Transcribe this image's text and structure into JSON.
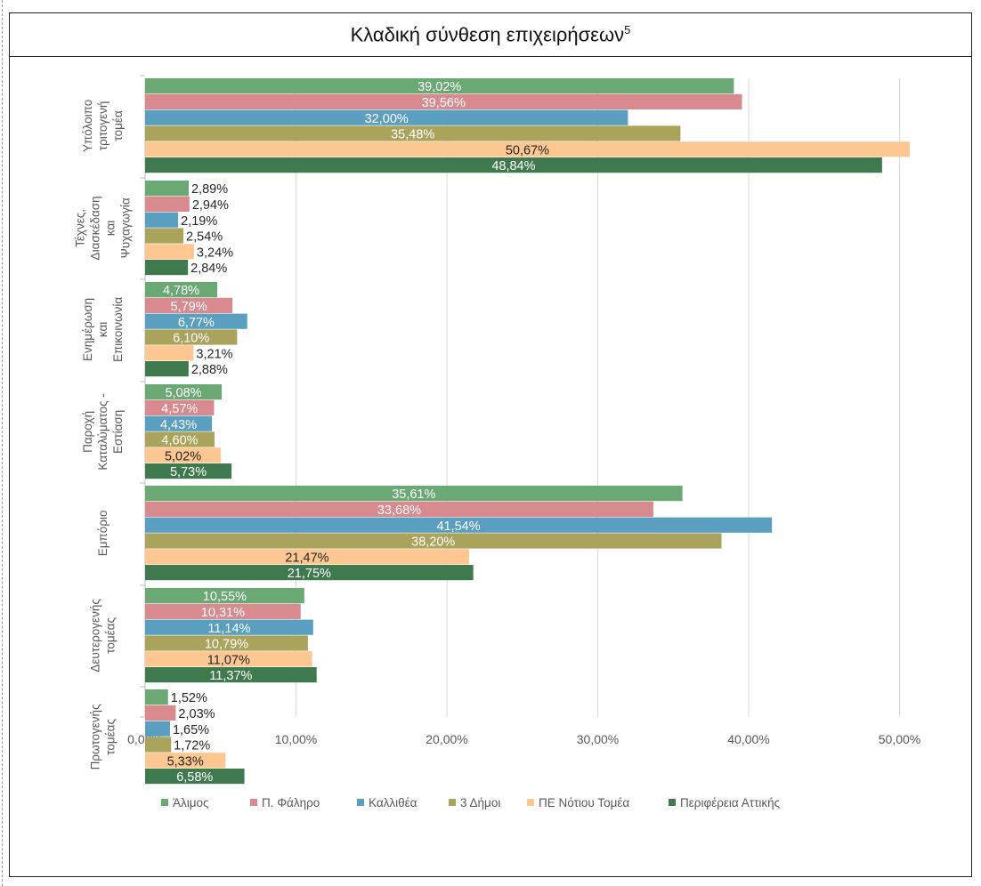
{
  "header": {
    "title": "Κλαδική σύνθεση επιχειρήσεων",
    "footnote": "5"
  },
  "chart_data": {
    "type": "bar",
    "orientation": "horizontal",
    "categories": [
      "Υπόλοιπο τριτογενή τομέα",
      "Τέχνες, Διασκέδαση και Ψυχαγωγία",
      "Ενημέρωση και Επικοινωνία",
      "Παροχή Καταλύματος - Εστίαση",
      "Εμπόριο",
      "Δευτερογενής τομέας",
      "Πρωτογενής τομέας"
    ],
    "category_lines": [
      [
        "Υπόλοιπο",
        "τριτογενή",
        "τομέα"
      ],
      [
        "Τέχνες,",
        "Διασκέδαση",
        "και",
        "Ψυχαγωγία"
      ],
      [
        "Ενημέρωση",
        "και",
        "Επικοινωνία"
      ],
      [
        "Παροχή",
        "Καταλύματος -",
        "Εστίαση"
      ],
      [
        "Εμπόριο"
      ],
      [
        "Δευτερογενής",
        "τομέας"
      ],
      [
        "Πρωτογενής",
        "τομέας"
      ]
    ],
    "series": [
      {
        "name": "Άλιμος",
        "color": "#6aa874",
        "values": [
          39.02,
          2.89,
          4.78,
          5.08,
          35.61,
          10.55,
          1.52
        ],
        "labels": [
          "39,02%",
          "2,89%",
          "4,78%",
          "5,08%",
          "35,61%",
          "10,55%",
          "1,52%"
        ]
      },
      {
        "name": "Π. Φάληρο",
        "color": "#d98a8e",
        "values": [
          39.56,
          2.94,
          5.79,
          4.57,
          33.68,
          10.31,
          2.03
        ],
        "labels": [
          "39,56%",
          "2,94%",
          "5,79%",
          "4,57%",
          "33,68%",
          "10,31%",
          "2,03%"
        ]
      },
      {
        "name": "Καλλιθέα",
        "color": "#5a9fc0",
        "values": [
          32.0,
          2.19,
          6.77,
          4.43,
          41.54,
          11.14,
          1.65
        ],
        "labels": [
          "32,00%",
          "2,19%",
          "6,77%",
          "4,43%",
          "41,54%",
          "11,14%",
          "1,65%"
        ]
      },
      {
        "name": "3 Δήμοι",
        "color": "#a9a35c",
        "values": [
          35.48,
          2.54,
          6.1,
          4.6,
          38.2,
          10.79,
          1.72
        ],
        "labels": [
          "35,48%",
          "2,54%",
          "6,10%",
          "4,60%",
          "38,20%",
          "10,79%",
          "1,72%"
        ]
      },
      {
        "name": "ΠΕ Νότιου Τομέα",
        "color": "#fcc790",
        "values": [
          50.67,
          3.24,
          3.21,
          5.02,
          21.47,
          11.07,
          5.33
        ],
        "labels": [
          "50,67%",
          "3,24%",
          "3,21%",
          "5,02%",
          "21,47%",
          "11,07%",
          "5,33%"
        ]
      },
      {
        "name": "Περιφέρεια Αττικής",
        "color": "#3f7a4f",
        "values": [
          48.84,
          2.84,
          2.88,
          5.73,
          21.75,
          11.37,
          6.58
        ],
        "labels": [
          "48,84%",
          "2,84%",
          "2,88%",
          "5,73%",
          "21,75%",
          "11,37%",
          "6,58%"
        ]
      }
    ],
    "xlim": [
      0,
      55
    ],
    "xticks": [
      0,
      10,
      20,
      30,
      40,
      50
    ],
    "xtick_labels": [
      "0,00%",
      "10,00%",
      "20,00%",
      "30,00%",
      "40,00%",
      "50,00%"
    ],
    "grid": true,
    "legend_position": "bottom",
    "xlabel": "",
    "ylabel": ""
  }
}
